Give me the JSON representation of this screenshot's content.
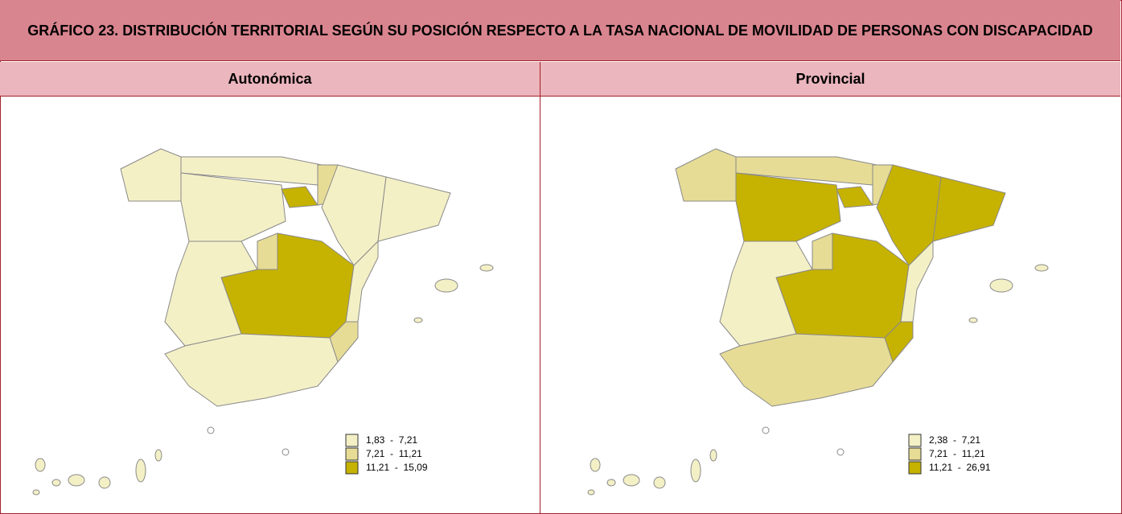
{
  "title": "GRÁFICO 23. DISTRIBUCIÓN TERRITORIAL SEGÚN SU POSICIÓN RESPECTO A LA TASA NACIONAL DE MOVILIDAD DE PERSONAS CON DISCAPACIDAD",
  "panels": [
    {
      "heading": "Autonómica",
      "legend": [
        {
          "label": "1,83  -  7,21",
          "color": "#f4f0c6"
        },
        {
          "label": "7,21  -  11,21",
          "color": "#e7dc96"
        },
        {
          "label": "11,21  -  15,09",
          "color": "#c6b200"
        }
      ]
    },
    {
      "heading": "Provincial",
      "legend": [
        {
          "label": "2,38  -  7,21",
          "color": "#f4f0c6"
        },
        {
          "label": "7,21  -  11,21",
          "color": "#e7dc96"
        },
        {
          "label": "11,21  -  26,91",
          "color": "#c6b200"
        }
      ]
    }
  ]
}
